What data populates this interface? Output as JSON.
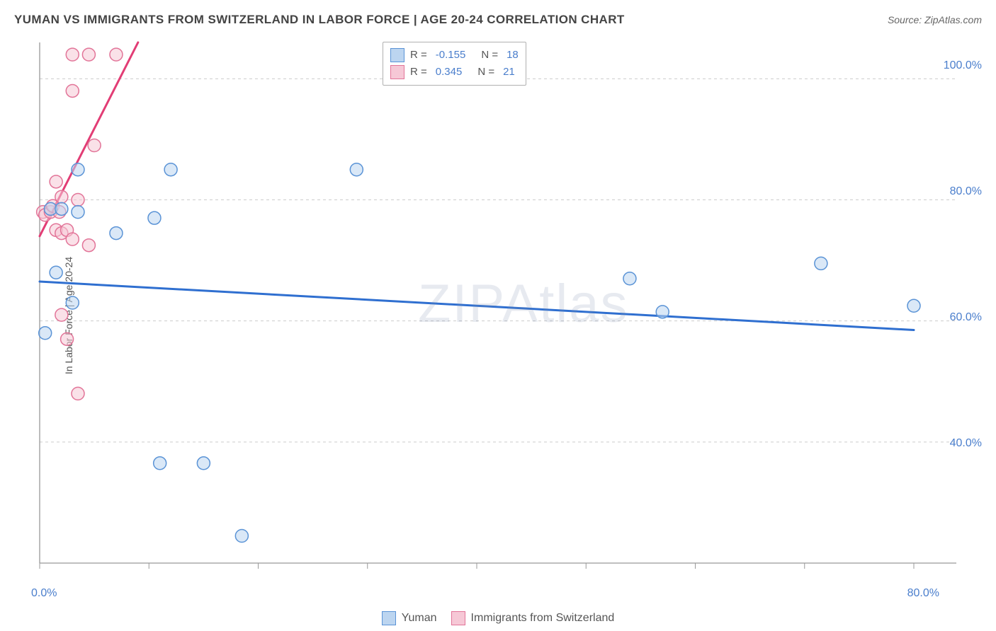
{
  "title": "YUMAN VS IMMIGRANTS FROM SWITZERLAND IN LABOR FORCE | AGE 20-24 CORRELATION CHART",
  "source": "Source: ZipAtlas.com",
  "y_axis_label": "In Labor Force | Age 20-24",
  "watermark": "ZIPAtlas",
  "chart": {
    "type": "scatter",
    "x_domain": [
      0,
      80
    ],
    "y_domain": [
      20,
      106
    ],
    "x_ticks": [
      0,
      10,
      20,
      30,
      40,
      50,
      60,
      70,
      80
    ],
    "x_tick_labels": {
      "0": "0.0%",
      "80": "80.0%"
    },
    "y_gridlines": [
      40,
      60,
      80,
      100
    ],
    "y_tick_labels": {
      "40": "40.0%",
      "60": "60.0%",
      "80": "80.0%",
      "100": "100.0%"
    },
    "grid_color": "#cccccc",
    "axis_color": "#999999",
    "plot_bg": "#ffffff"
  },
  "series": {
    "blue": {
      "label": "Yuman",
      "fill": "#bcd5f0",
      "stroke": "#5a93d6",
      "line_color": "#2f6fd0",
      "R": "-0.155",
      "N": "18",
      "marker_r": 9,
      "trend": {
        "x1": 0,
        "y1": 66.5,
        "x2": 80,
        "y2": 58.5
      },
      "points": [
        [
          0.5,
          58
        ],
        [
          1.5,
          68
        ],
        [
          3.5,
          85
        ],
        [
          3.0,
          63
        ],
        [
          3.5,
          78
        ],
        [
          7.0,
          74.5
        ],
        [
          10.5,
          77
        ],
        [
          12.0,
          85
        ],
        [
          11.0,
          36.5
        ],
        [
          15.0,
          36.5
        ],
        [
          18.5,
          24.5
        ],
        [
          29.0,
          85
        ],
        [
          54.0,
          67
        ],
        [
          57.0,
          61.5
        ],
        [
          71.5,
          69.5
        ],
        [
          80.0,
          62.5
        ],
        [
          1.0,
          78.5
        ],
        [
          2.0,
          78.5
        ]
      ]
    },
    "pink": {
      "label": "Immigrants from Switzerland",
      "fill": "#f6c8d6",
      "stroke": "#e27498",
      "line_color": "#e23d75",
      "R": "0.345",
      "N": "21",
      "marker_r": 9,
      "trend": {
        "x1": 0,
        "y1": 74,
        "x2": 9,
        "y2": 106
      },
      "points": [
        [
          0.3,
          78
        ],
        [
          0.5,
          77.5
        ],
        [
          1.0,
          78
        ],
        [
          1.2,
          79
        ],
        [
          1.8,
          78
        ],
        [
          1.5,
          75
        ],
        [
          2.0,
          74.5
        ],
        [
          2.5,
          75
        ],
        [
          3.0,
          73.5
        ],
        [
          4.5,
          72.5
        ],
        [
          2.0,
          80.5
        ],
        [
          3.5,
          80
        ],
        [
          1.5,
          83
        ],
        [
          3.0,
          104
        ],
        [
          4.5,
          104
        ],
        [
          7.0,
          104
        ],
        [
          3.0,
          98
        ],
        [
          5.0,
          89
        ],
        [
          2.0,
          61
        ],
        [
          2.5,
          57
        ],
        [
          3.5,
          48
        ]
      ]
    }
  },
  "stat_box": {
    "items": [
      "blue",
      "pink"
    ]
  }
}
